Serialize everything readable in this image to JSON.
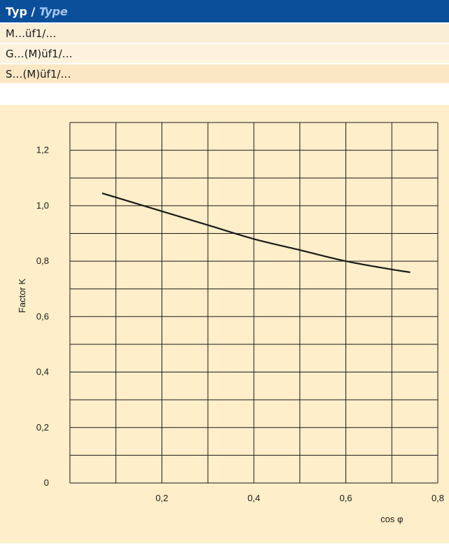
{
  "table": {
    "header_de": "Typ",
    "header_sep": " / ",
    "header_en": "Type",
    "rows": [
      "M…üf1/…",
      "G…(M)üf1/…",
      "S…(M)üf1/…"
    ]
  },
  "colors": {
    "header_bg": "#0b4f9a",
    "panel_bg": "#feeec9",
    "curve": "#1a1a1a"
  },
  "chart_data": {
    "type": "line",
    "xlabel": "cos φ",
    "ylabel": "Factor K",
    "xlim": [
      0,
      0.8
    ],
    "ylim": [
      0,
      1.3
    ],
    "x_ticks": [
      0.2,
      0.4,
      0.6,
      0.8
    ],
    "x_tick_labels": [
      "0,2",
      "0,4",
      "0,6",
      "0,8"
    ],
    "y_ticks": [
      0,
      0.2,
      0.4,
      0.6,
      0.8,
      1.0,
      1.2
    ],
    "y_tick_labels": [
      "0",
      "0,2",
      "0,4",
      "0,6",
      "0,8",
      "1,0",
      "1,2"
    ],
    "grid": true,
    "series": [
      {
        "x": [
          0.07,
          0.1,
          0.2,
          0.3,
          0.4,
          0.5,
          0.6,
          0.7,
          0.74
        ],
        "y": [
          1.045,
          1.03,
          0.98,
          0.93,
          0.88,
          0.84,
          0.8,
          0.77,
          0.76
        ]
      }
    ]
  }
}
